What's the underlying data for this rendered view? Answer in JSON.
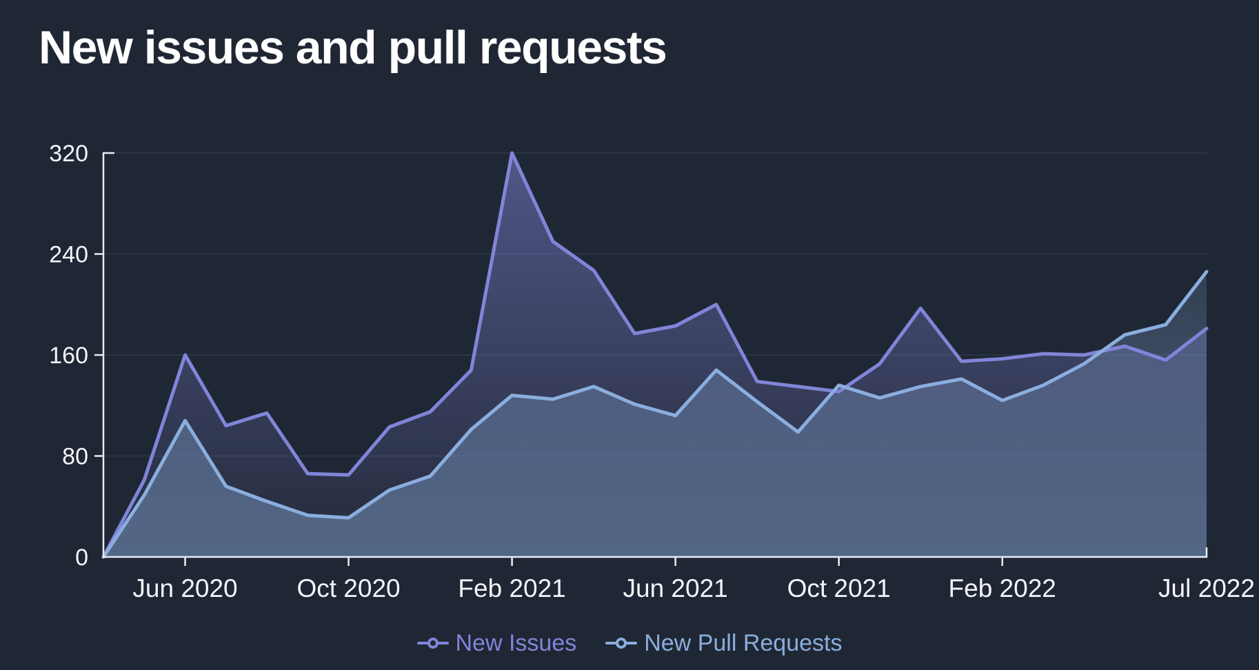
{
  "title": "New issues and pull requests",
  "colors": {
    "background": "#202734",
    "title_text": "#ffffff",
    "axis": "#e9edf3",
    "axis_label": "#f3f5f9",
    "gridline": "#2b3443",
    "new_issues": "#8185d9",
    "new_pull_requests": "#8aaede"
  },
  "legend": {
    "position": "bottom",
    "items": [
      {
        "label": "New Issues",
        "color": "#8185d9"
      },
      {
        "label": "New Pull Requests",
        "color": "#8aaede"
      }
    ]
  },
  "chart_data": {
    "type": "area",
    "title": "New issues and pull requests",
    "xlabel": "",
    "ylabel": "",
    "ylim": [
      0,
      320
    ],
    "grid": true,
    "legend_position": "bottom",
    "x": [
      "Apr 2020",
      "May 2020",
      "Jun 2020",
      "Jul 2020",
      "Aug 2020",
      "Sep 2020",
      "Oct 2020",
      "Nov 2020",
      "Dec 2020",
      "Jan 2021",
      "Feb 2021",
      "Mar 2021",
      "Apr 2021",
      "May 2021",
      "Jun 2021",
      "Jul 2021",
      "Aug 2021",
      "Sep 2021",
      "Oct 2021",
      "Nov 2021",
      "Dec 2021",
      "Jan 2022",
      "Feb 2022",
      "Mar 2022",
      "Apr 2022",
      "May 2022",
      "Jun 2022",
      "Jul 2022"
    ],
    "series": [
      {
        "name": "New Issues",
        "color": "#8185d9",
        "values": [
          0,
          61,
          160,
          104,
          114,
          66,
          65,
          103,
          115,
          148,
          320,
          250,
          227,
          177,
          183,
          200,
          139,
          135,
          131,
          153,
          197,
          155,
          157,
          161,
          160,
          167,
          156,
          181
        ]
      },
      {
        "name": "New Pull Requests",
        "color": "#8aaede",
        "values": [
          0,
          49,
          108,
          56,
          44,
          33,
          31,
          53,
          64,
          101,
          128,
          125,
          135,
          121,
          112,
          148,
          123,
          99,
          136,
          126,
          135,
          141,
          124,
          136,
          153,
          176,
          184,
          226
        ]
      }
    ],
    "y_ticks": [
      0,
      80,
      160,
      240,
      320
    ],
    "y_tick_labels": [
      "0",
      "80",
      "160",
      "240",
      "320"
    ],
    "x_tick_labels": [
      {
        "label": "Jun 2020",
        "index": 2
      },
      {
        "label": "Oct 2020",
        "index": 6
      },
      {
        "label": "Feb 2021",
        "index": 10
      },
      {
        "label": "Jun 2021",
        "index": 14
      },
      {
        "label": "Oct 2021",
        "index": 18
      },
      {
        "label": "Feb 2022",
        "index": 22
      },
      {
        "label": "Jul 2022",
        "index": 27
      }
    ]
  }
}
